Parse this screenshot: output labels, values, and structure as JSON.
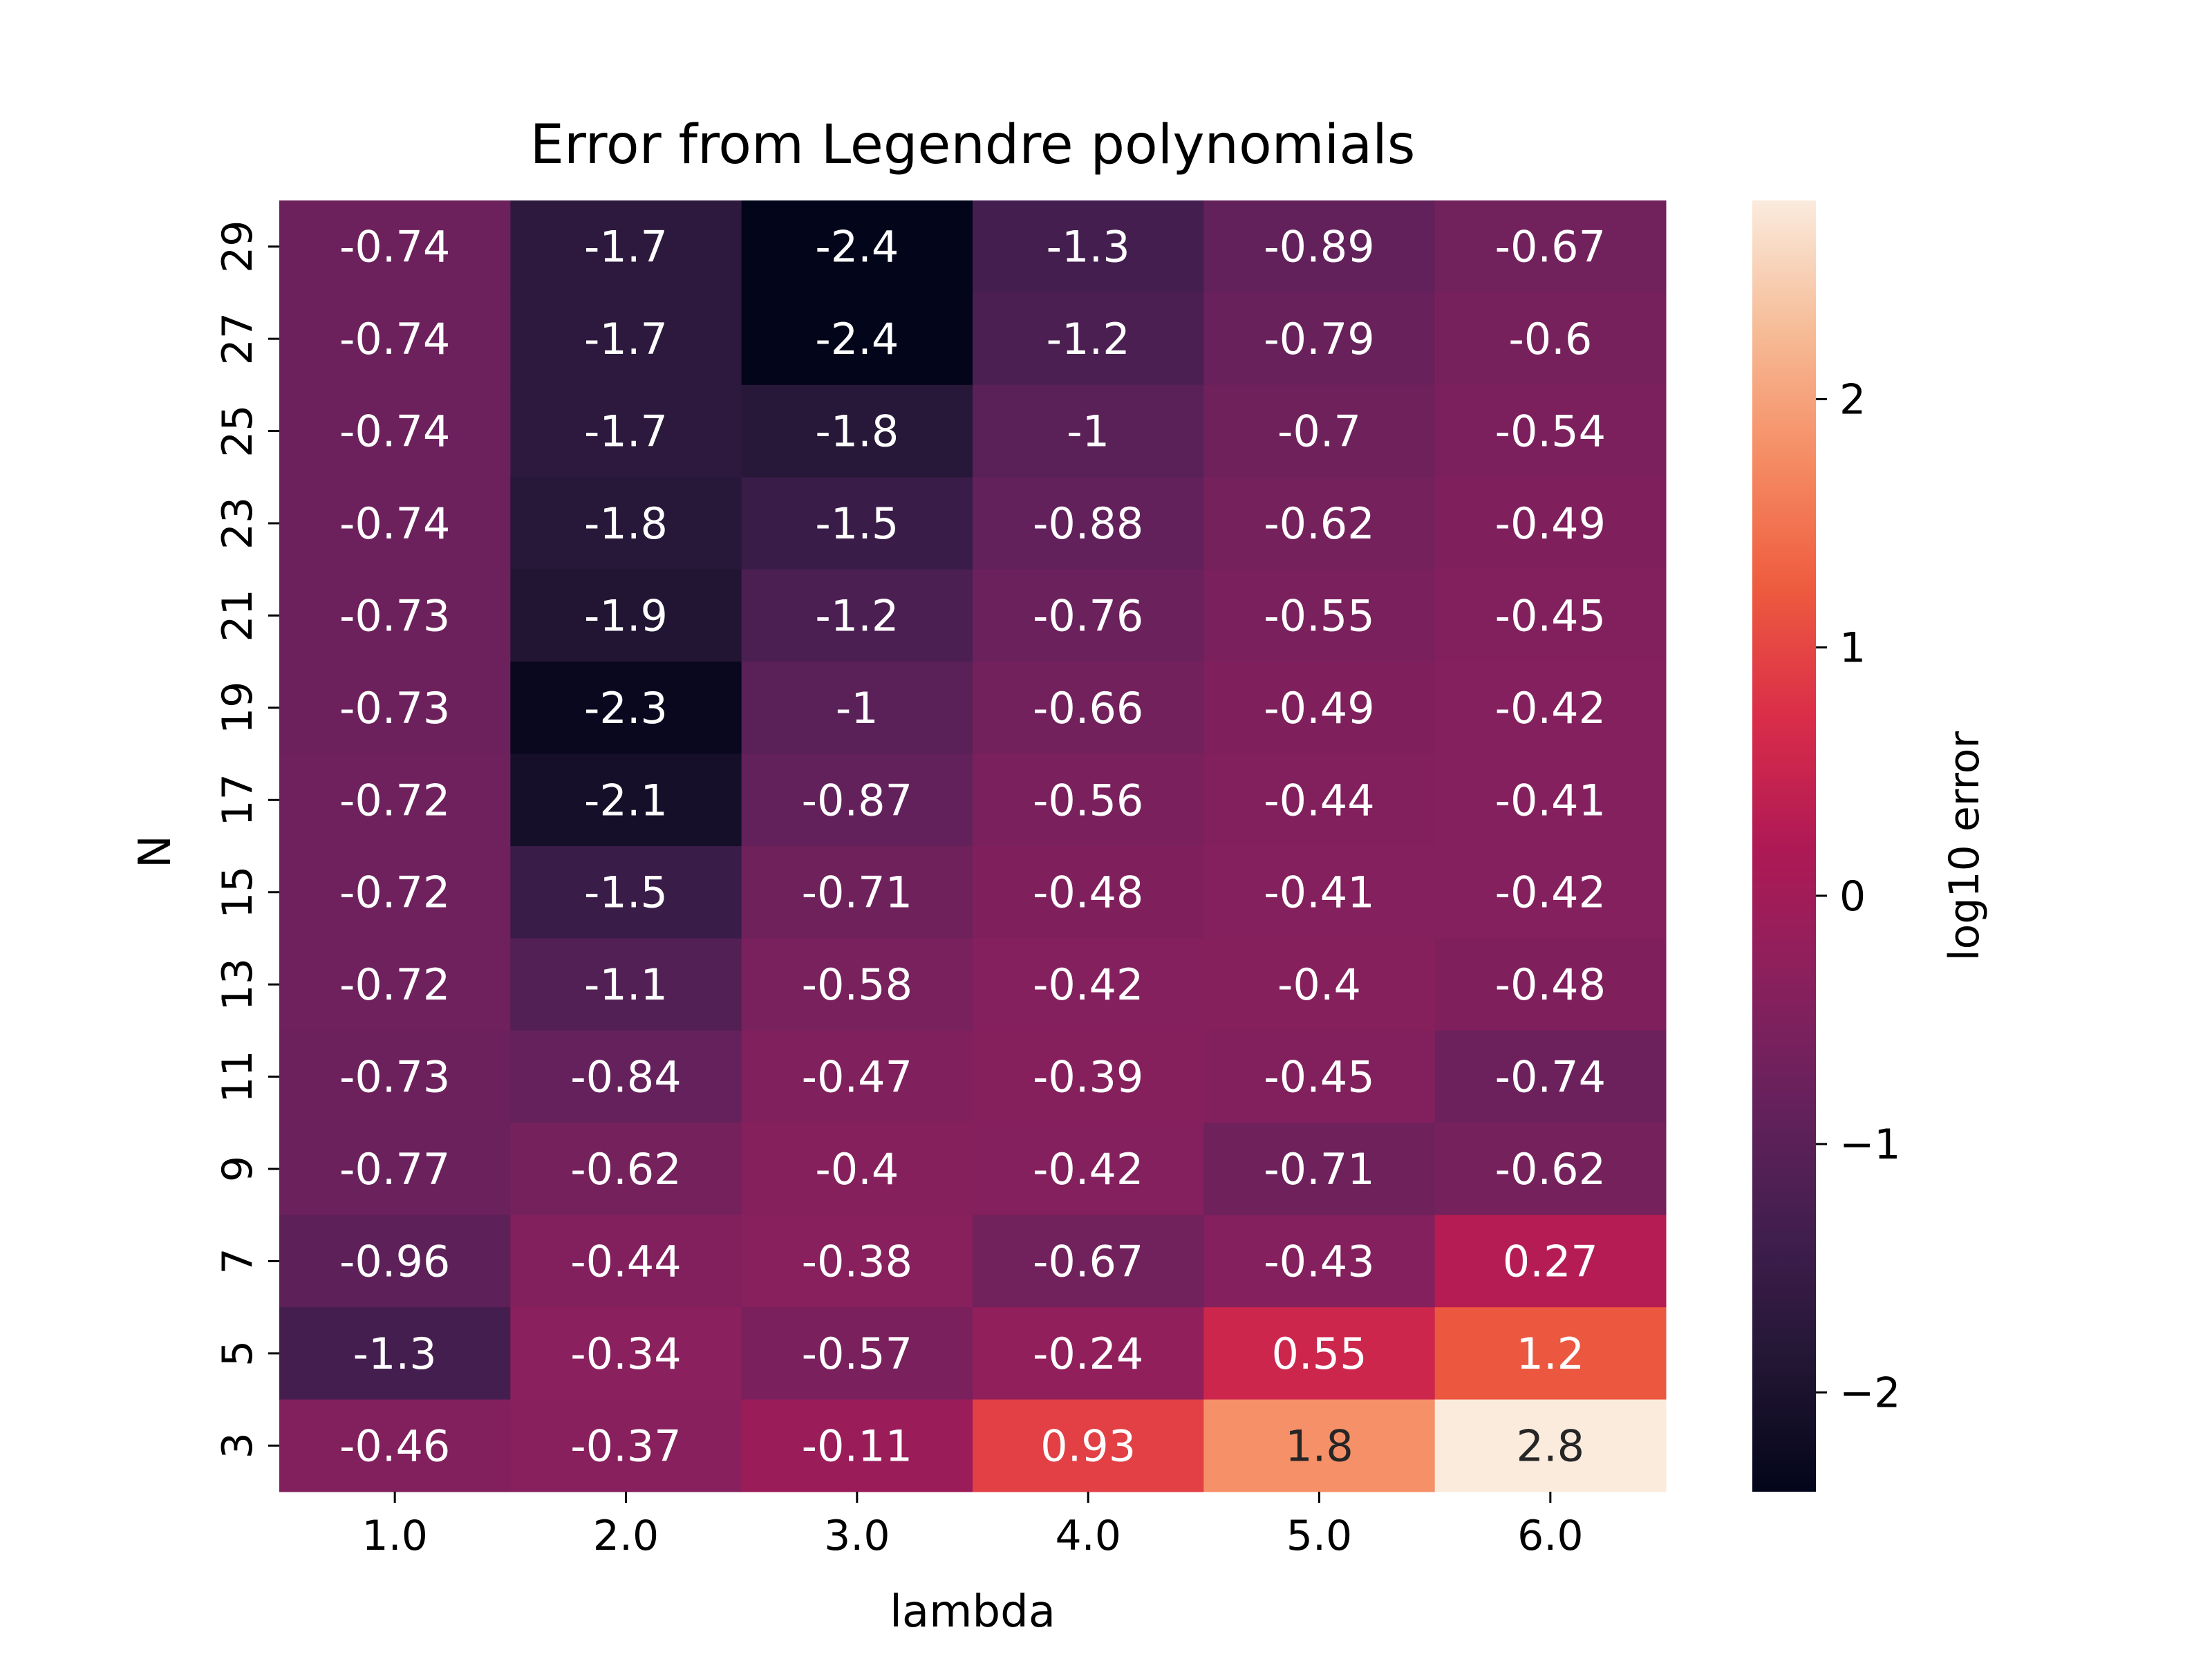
{
  "chart_data": {
    "type": "heatmap",
    "title": "Error from Legendre polynomials",
    "xlabel": "lambda",
    "ylabel": "N",
    "x_categories": [
      "1.0",
      "2.0",
      "3.0",
      "4.0",
      "5.0",
      "6.0"
    ],
    "y_categories": [
      "29",
      "27",
      "25",
      "23",
      "21",
      "19",
      "17",
      "15",
      "13",
      "11",
      "9",
      "7",
      "5",
      "3"
    ],
    "values": [
      [
        -0.74,
        -1.7,
        -2.4,
        -1.3,
        -0.89,
        -0.67
      ],
      [
        -0.74,
        -1.7,
        -2.4,
        -1.2,
        -0.79,
        -0.6
      ],
      [
        -0.74,
        -1.7,
        -1.8,
        -1,
        -0.7,
        -0.54
      ],
      [
        -0.74,
        -1.8,
        -1.5,
        -0.88,
        -0.62,
        -0.49
      ],
      [
        -0.73,
        -1.9,
        -1.2,
        -0.76,
        -0.55,
        -0.45
      ],
      [
        -0.73,
        -2.3,
        -1,
        -0.66,
        -0.49,
        -0.42
      ],
      [
        -0.72,
        -2.1,
        -0.87,
        -0.56,
        -0.44,
        -0.41
      ],
      [
        -0.72,
        -1.5,
        -0.71,
        -0.48,
        -0.41,
        -0.42
      ],
      [
        -0.72,
        -1.1,
        -0.58,
        -0.42,
        -0.4,
        -0.48
      ],
      [
        -0.73,
        -0.84,
        -0.47,
        -0.39,
        -0.45,
        -0.74
      ],
      [
        -0.77,
        -0.62,
        -0.4,
        -0.42,
        -0.71,
        -0.62
      ],
      [
        -0.96,
        -0.44,
        -0.38,
        -0.67,
        -0.43,
        0.27
      ],
      [
        -1.3,
        -0.34,
        -0.57,
        -0.24,
        0.55,
        1.2
      ],
      [
        -0.46,
        -0.37,
        -0.11,
        0.93,
        1.8,
        2.8
      ]
    ],
    "colorbar": {
      "label": "log10 error",
      "ticks": [
        -2,
        -1,
        0,
        1,
        2
      ],
      "tick_labels": [
        "−2",
        "−1",
        "0",
        "1",
        "2"
      ],
      "vmin": -2.4,
      "vmax": 2.8,
      "colormap": "rocket"
    },
    "annotations": "cell values shown in each cell",
    "grid": false
  }
}
